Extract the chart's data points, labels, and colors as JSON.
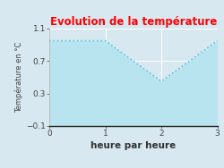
{
  "title": "Evolution de la température",
  "title_color": "#ff0000",
  "xlabel": "heure par heure",
  "ylabel": "Température en °C",
  "xlim": [
    0,
    3
  ],
  "ylim": [
    -0.1,
    1.1
  ],
  "xticks": [
    0,
    1,
    2,
    3
  ],
  "yticks": [
    -0.1,
    0.3,
    0.7,
    1.1
  ],
  "x": [
    0,
    1,
    2,
    3
  ],
  "y": [
    0.95,
    0.95,
    0.45,
    0.95
  ],
  "line_color": "#5bc8e0",
  "fill_color": "#b8e4f0",
  "fill_alpha": 1.0,
  "line_style": "dotted",
  "line_width": 1.2,
  "background_color": "#d8e8f0",
  "plot_bg_color": "#d8e8f0",
  "title_fontsize": 8.5,
  "axis_label_fontsize": 7,
  "tick_fontsize": 6.5,
  "ylabel_fontsize": 6,
  "xlabel_fontsize": 7.5
}
